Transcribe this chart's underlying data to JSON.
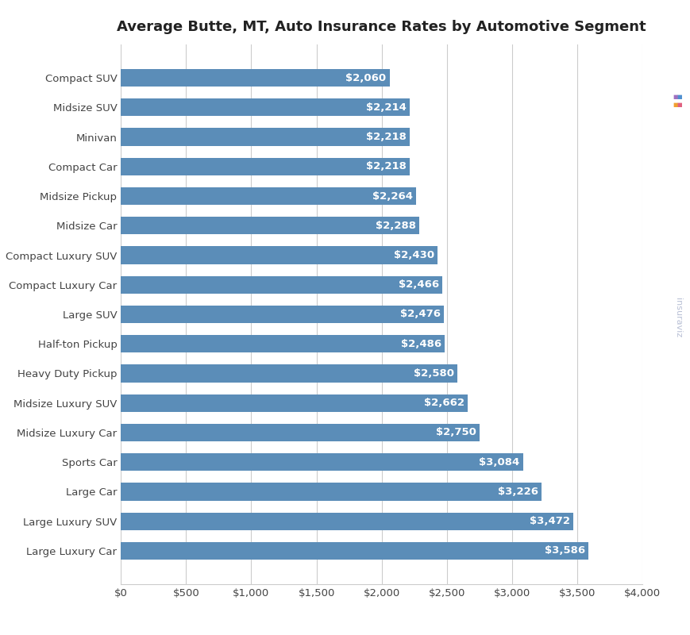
{
  "title": "Average Butte, MT, Auto Insurance Rates by Automotive Segment",
  "categories": [
    "Compact SUV",
    "Midsize SUV",
    "Minivan",
    "Compact Car",
    "Midsize Pickup",
    "Midsize Car",
    "Compact Luxury SUV",
    "Compact Luxury Car",
    "Large SUV",
    "Half-ton Pickup",
    "Heavy Duty Pickup",
    "Midsize Luxury SUV",
    "Midsize Luxury Car",
    "Sports Car",
    "Large Car",
    "Large Luxury SUV",
    "Large Luxury Car"
  ],
  "values": [
    2060,
    2214,
    2218,
    2218,
    2264,
    2288,
    2430,
    2466,
    2476,
    2486,
    2580,
    2662,
    2750,
    3084,
    3226,
    3472,
    3586
  ],
  "bar_color": "#5b8db8",
  "label_color": "#ffffff",
  "background_color": "#ffffff",
  "grid_color": "#cccccc",
  "title_fontsize": 13,
  "label_fontsize": 9.5,
  "tick_fontsize": 9.5,
  "xlim": [
    0,
    4000
  ],
  "xticks": [
    0,
    500,
    1000,
    1500,
    2000,
    2500,
    3000,
    3500,
    4000
  ]
}
